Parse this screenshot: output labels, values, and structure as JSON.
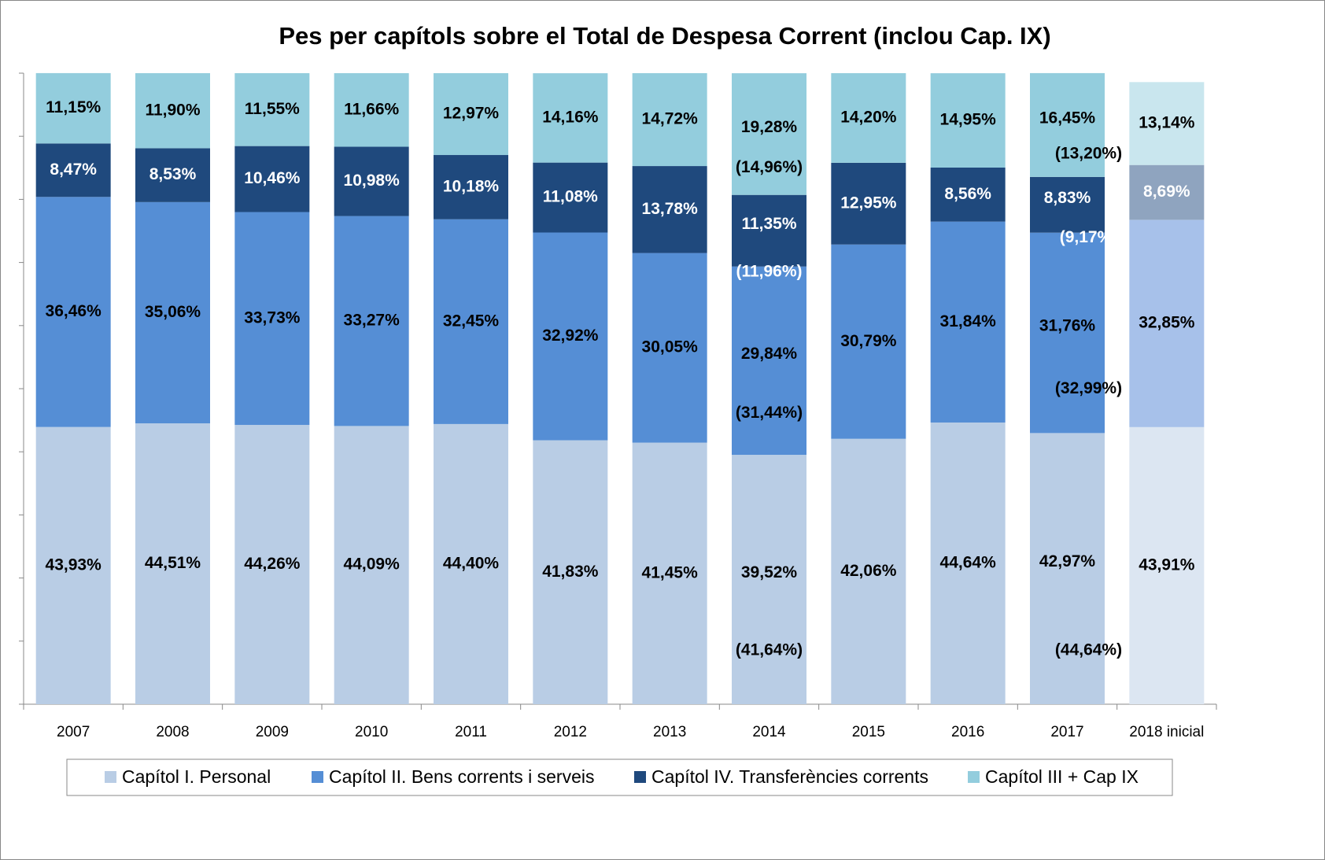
{
  "chart_data": {
    "type": "stacked_bar",
    "title": "Pes per capítols sobre el Total de Despesa Corrent (inclou Cap. IX)",
    "categories": [
      "2007",
      "2008",
      "2009",
      "2010",
      "2011",
      "2012",
      "2013",
      "2014",
      "2015",
      "2016",
      "2017",
      "2018 inicial"
    ],
    "ylim": [
      0,
      100
    ],
    "yticks": [
      0,
      10,
      20,
      30,
      40,
      50,
      60,
      70,
      80,
      90,
      100
    ],
    "series": [
      {
        "name": "Capítol I. Personal",
        "color": "#b9cde5",
        "label_color": "#000000",
        "colors": [
          "#b9cde5",
          "#b9cde5",
          "#b9cde5",
          "#b9cde5",
          "#b9cde5",
          "#b9cde5",
          "#b9cde5",
          "#b9cde5",
          "#b9cde5",
          "#b9cde5",
          "#b9cde5",
          "#dce6f2"
        ],
        "values": [
          43.93,
          44.51,
          44.26,
          44.09,
          44.4,
          41.83,
          41.45,
          39.52,
          42.06,
          44.64,
          42.97,
          43.91
        ],
        "value_labels": [
          "43,93%",
          "44,51%",
          "44,26%",
          "44,09%",
          "44,40%",
          "41,83%",
          "41,45%",
          "39,52%",
          "42,06%",
          "44,64%",
          "42,97%",
          "43,91%"
        ]
      },
      {
        "name": "Capítol II. Bens corrents i serveis",
        "color": "#558ed5",
        "label_color": "#000000",
        "colors": [
          "#558ed5",
          "#558ed5",
          "#558ed5",
          "#558ed5",
          "#558ed5",
          "#558ed5",
          "#558ed5",
          "#558ed5",
          "#558ed5",
          "#558ed5",
          "#558ed5",
          "#a7c1ea"
        ],
        "values": [
          36.46,
          35.06,
          33.73,
          33.27,
          32.45,
          32.92,
          30.05,
          29.84,
          30.79,
          31.84,
          31.76,
          32.85
        ],
        "value_labels": [
          "36,46%",
          "35,06%",
          "33,73%",
          "33,27%",
          "32,45%",
          "32,92%",
          "30,05%",
          "29,84%",
          "30,79%",
          "31,84%",
          "31,76%",
          "32,85%"
        ]
      },
      {
        "name": "Capítol IV. Transferències corrents",
        "color": "#1f497d",
        "label_color": "#ffffff",
        "colors": [
          "#1f497d",
          "#1f497d",
          "#1f497d",
          "#1f497d",
          "#1f497d",
          "#1f497d",
          "#1f497d",
          "#1f497d",
          "#1f497d",
          "#1f497d",
          "#1f497d",
          "#8fa4bf"
        ],
        "values": [
          8.47,
          8.53,
          10.46,
          10.98,
          10.18,
          11.08,
          13.78,
          11.35,
          12.95,
          8.56,
          8.83,
          8.69
        ],
        "value_labels": [
          "8,47%",
          "8,53%",
          "10,46%",
          "10,98%",
          "10,18%",
          "11,08%",
          "13,78%",
          "11,35%",
          "12,95%",
          "8,56%",
          "8,83%",
          "8,69%"
        ]
      },
      {
        "name": "Capítol III + Cap IX",
        "color": "#93cddd",
        "label_color": "#000000",
        "colors": [
          "#93cddd",
          "#93cddd",
          "#93cddd",
          "#93cddd",
          "#93cddd",
          "#93cddd",
          "#93cddd",
          "#93cddd",
          "#93cddd",
          "#93cddd",
          "#93cddd",
          "#c9e6ee"
        ],
        "values": [
          11.15,
          11.9,
          11.55,
          11.66,
          12.97,
          14.16,
          14.72,
          19.28,
          14.2,
          14.95,
          16.45,
          13.14
        ],
        "value_labels": [
          "11,15%",
          "11,90%",
          "11,55%",
          "11,66%",
          "12,97%",
          "14,16%",
          "14,72%",
          "19,28%",
          "14,20%",
          "14,95%",
          "16,45%",
          "13,14%"
        ]
      }
    ],
    "annotations": [
      {
        "category": "2014",
        "series": "Capítol I. Personal",
        "text": "(41,64%)",
        "color": "#000000"
      },
      {
        "category": "2014",
        "series": "Capítol II. Bens corrents i serveis",
        "text": "(31,44%)",
        "color": "#000000"
      },
      {
        "category": "2014",
        "series": "Capítol IV. Transferències corrents",
        "text": "(11,96%)",
        "color": "#ffffff"
      },
      {
        "category": "2014",
        "series": "Capítol III + Cap IX",
        "text": "(14,96%)",
        "color": "#000000"
      },
      {
        "category": "2017",
        "series": "Capítol I. Personal",
        "text": "(44,64%)",
        "color": "#000000"
      },
      {
        "category": "2017",
        "series": "Capítol II. Bens corrents i serveis",
        "text": "(32,99%)",
        "color": "#000000"
      },
      {
        "category": "2017",
        "series": "Capítol IV. Transferències corrents",
        "text": "(9,17%)",
        "color": "#ffffff"
      },
      {
        "category": "2017",
        "series": "Capítol III + Cap IX",
        "text": "(13,20%)",
        "color": "#000000"
      }
    ]
  }
}
